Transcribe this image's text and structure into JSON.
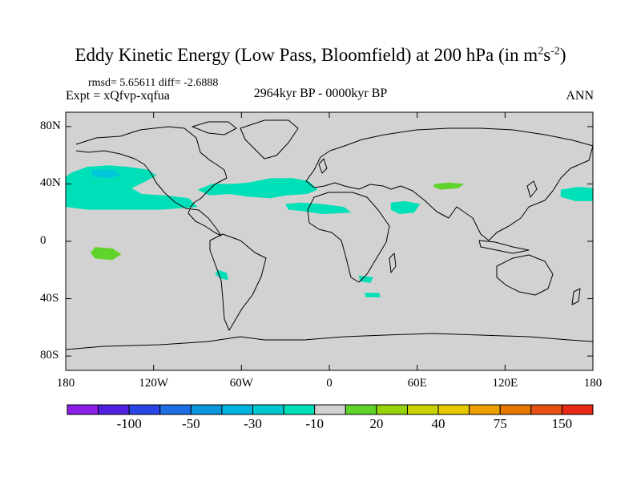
{
  "title": {
    "main": "Eddy Kinetic Energy (Low Pass, Bloomfield) at 200 hPa (in m",
    "sup1": "2",
    "s": "s",
    "sup2": "-2",
    "close": ")"
  },
  "stats": "rmsd= 5.65611 diff= -2.6888",
  "expt": "Expt = xQfvp-xqfua",
  "period": "2964kyr BP - 0000kyr BP",
  "season": "ANN",
  "map": {
    "projection": "cylindrical-equidistant",
    "lon_range": [
      -180,
      180
    ],
    "lat_range": [
      -90,
      90
    ],
    "background_color": "#d2d2d2",
    "lat_ticks": [
      {
        "lat": 80,
        "label": "80N"
      },
      {
        "lat": 40,
        "label": "40N"
      },
      {
        "lat": 0,
        "label": "0"
      },
      {
        "lat": -40,
        "label": "40S"
      },
      {
        "lat": -80,
        "label": "80S"
      }
    ],
    "lon_ticks": [
      {
        "lon": -180,
        "label": "180"
      },
      {
        "lon": -120,
        "label": "120W"
      },
      {
        "lon": -60,
        "label": "60W"
      },
      {
        "lon": 0,
        "label": "0"
      },
      {
        "lon": 60,
        "label": "60E"
      },
      {
        "lon": 120,
        "label": "120E"
      },
      {
        "lon": 180,
        "label": "180"
      }
    ],
    "anomaly_regions": [
      {
        "name": "north-pacific-cyan",
        "color": "#00e0b8",
        "points": [
          [
            -176,
            48
          ],
          [
            -165,
            52
          ],
          [
            -150,
            53
          ],
          [
            -138,
            52
          ],
          [
            -124,
            50
          ],
          [
            -118,
            46
          ],
          [
            -125,
            42
          ],
          [
            -135,
            37
          ],
          [
            -128,
            33
          ],
          [
            -112,
            32
          ],
          [
            -96,
            30
          ],
          [
            -90,
            24
          ],
          [
            -115,
            22
          ],
          [
            -140,
            22
          ],
          [
            -165,
            22
          ],
          [
            -180,
            24
          ],
          [
            -180,
            45
          ]
        ]
      },
      {
        "name": "north-pacific-blue-core",
        "color": "#00c8d8",
        "points": [
          [
            -162,
            50
          ],
          [
            -148,
            50
          ],
          [
            -142,
            46
          ],
          [
            -150,
            44
          ],
          [
            -162,
            45
          ]
        ]
      },
      {
        "name": "north-atlantic-cyan",
        "color": "#00e0b8",
        "points": [
          [
            -90,
            36
          ],
          [
            -80,
            40
          ],
          [
            -65,
            40
          ],
          [
            -55,
            41
          ],
          [
            -40,
            44
          ],
          [
            -25,
            44
          ],
          [
            -14,
            42
          ],
          [
            -8,
            36
          ],
          [
            -15,
            33
          ],
          [
            -30,
            32
          ],
          [
            -40,
            30
          ],
          [
            -55,
            31
          ],
          [
            -68,
            33
          ],
          [
            -82,
            32
          ]
        ]
      },
      {
        "name": "saharan-cyan",
        "color": "#00e0b8",
        "points": [
          [
            -30,
            26
          ],
          [
            -20,
            27
          ],
          [
            -5,
            26
          ],
          [
            10,
            24
          ],
          [
            15,
            20
          ],
          [
            -5,
            19
          ],
          [
            -18,
            21
          ],
          [
            -28,
            22
          ]
        ]
      },
      {
        "name": "arabian-cyan",
        "color": "#00e0b8",
        "points": [
          [
            42,
            27
          ],
          [
            52,
            28
          ],
          [
            62,
            26
          ],
          [
            58,
            20
          ],
          [
            48,
            19
          ],
          [
            42,
            22
          ]
        ]
      },
      {
        "name": "west-pacific-cyan",
        "color": "#00e0b8",
        "points": [
          [
            158,
            36
          ],
          [
            170,
            38
          ],
          [
            180,
            37
          ],
          [
            180,
            28
          ],
          [
            168,
            28
          ],
          [
            158,
            31
          ]
        ]
      },
      {
        "name": "tibet-green",
        "color": "#5fd32a",
        "points": [
          [
            72,
            40
          ],
          [
            82,
            41
          ],
          [
            92,
            40
          ],
          [
            88,
            37
          ],
          [
            76,
            36
          ],
          [
            71,
            38
          ]
        ]
      },
      {
        "name": "tropical-pacific-green",
        "color": "#5fd32a",
        "points": [
          [
            -160,
            -4
          ],
          [
            -148,
            -5
          ],
          [
            -142,
            -9
          ],
          [
            -148,
            -13
          ],
          [
            -160,
            -12
          ],
          [
            -163,
            -8
          ]
        ]
      },
      {
        "name": "south-pacific-cyan",
        "color": "#00e0b8",
        "points": [
          [
            -76,
            -20
          ],
          [
            -70,
            -22
          ],
          [
            -69,
            -27
          ],
          [
            -74,
            -26
          ],
          [
            -78,
            -23
          ]
        ]
      },
      {
        "name": "south-africa-cyan",
        "color": "#00e0b8",
        "points": [
          [
            20,
            -24
          ],
          [
            30,
            -25
          ],
          [
            28,
            -29
          ],
          [
            21,
            -28
          ]
        ]
      },
      {
        "name": "south-indian-cyan",
        "color": "#00e0b8",
        "points": [
          [
            24,
            -36
          ],
          [
            34,
            -36
          ],
          [
            35,
            -39
          ],
          [
            25,
            -39
          ]
        ]
      }
    ]
  },
  "colorbar": {
    "colors": [
      "#8c1ee6",
      "#5020e0",
      "#2846e6",
      "#1e6ee6",
      "#0a96dc",
      "#00b4e0",
      "#00c8d0",
      "#00e0b8",
      "#d2d2d2",
      "#5fd32a",
      "#96d20a",
      "#c8d200",
      "#e6c800",
      "#eea000",
      "#e67800",
      "#e65014",
      "#e62814"
    ],
    "labels": [
      {
        "index": 2,
        "text": "-100"
      },
      {
        "index": 4,
        "text": "-50"
      },
      {
        "index": 6,
        "text": "-30"
      },
      {
        "index": 8,
        "text": "-10"
      },
      {
        "index": 10,
        "text": "20"
      },
      {
        "index": 12,
        "text": "40"
      },
      {
        "index": 14,
        "text": "75"
      },
      {
        "index": 16,
        "text": "150"
      }
    ]
  }
}
